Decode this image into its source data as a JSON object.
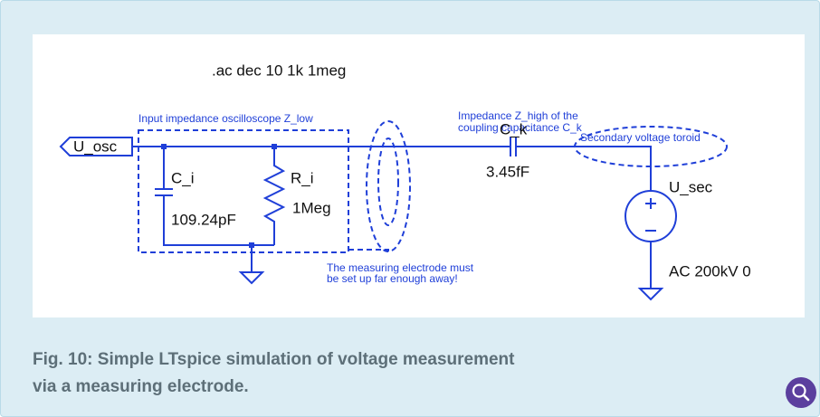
{
  "schematic": {
    "directive": ".ac dec 10 1k 1meg",
    "notes": [
      "Impedance Z_high of the",
      "coupling capacitance C_k",
      "Input impedance oscilloscope Z_low",
      "Secondary voltage toroid",
      "The measuring electrode must",
      "be set up far enough away!"
    ],
    "port": "U_osc",
    "components": [
      {
        "name": "C_k",
        "value": "3.45fF"
      },
      {
        "name": "C_i",
        "value": "109.24pF"
      },
      {
        "name": "R_i",
        "value": "1Meg"
      },
      {
        "name": "U_sec",
        "value": "AC 200kV 0"
      }
    ]
  },
  "caption": [
    "Fig. 10: Simple LTspice simulation of voltage measurement",
    "via a measuring electrode."
  ]
}
